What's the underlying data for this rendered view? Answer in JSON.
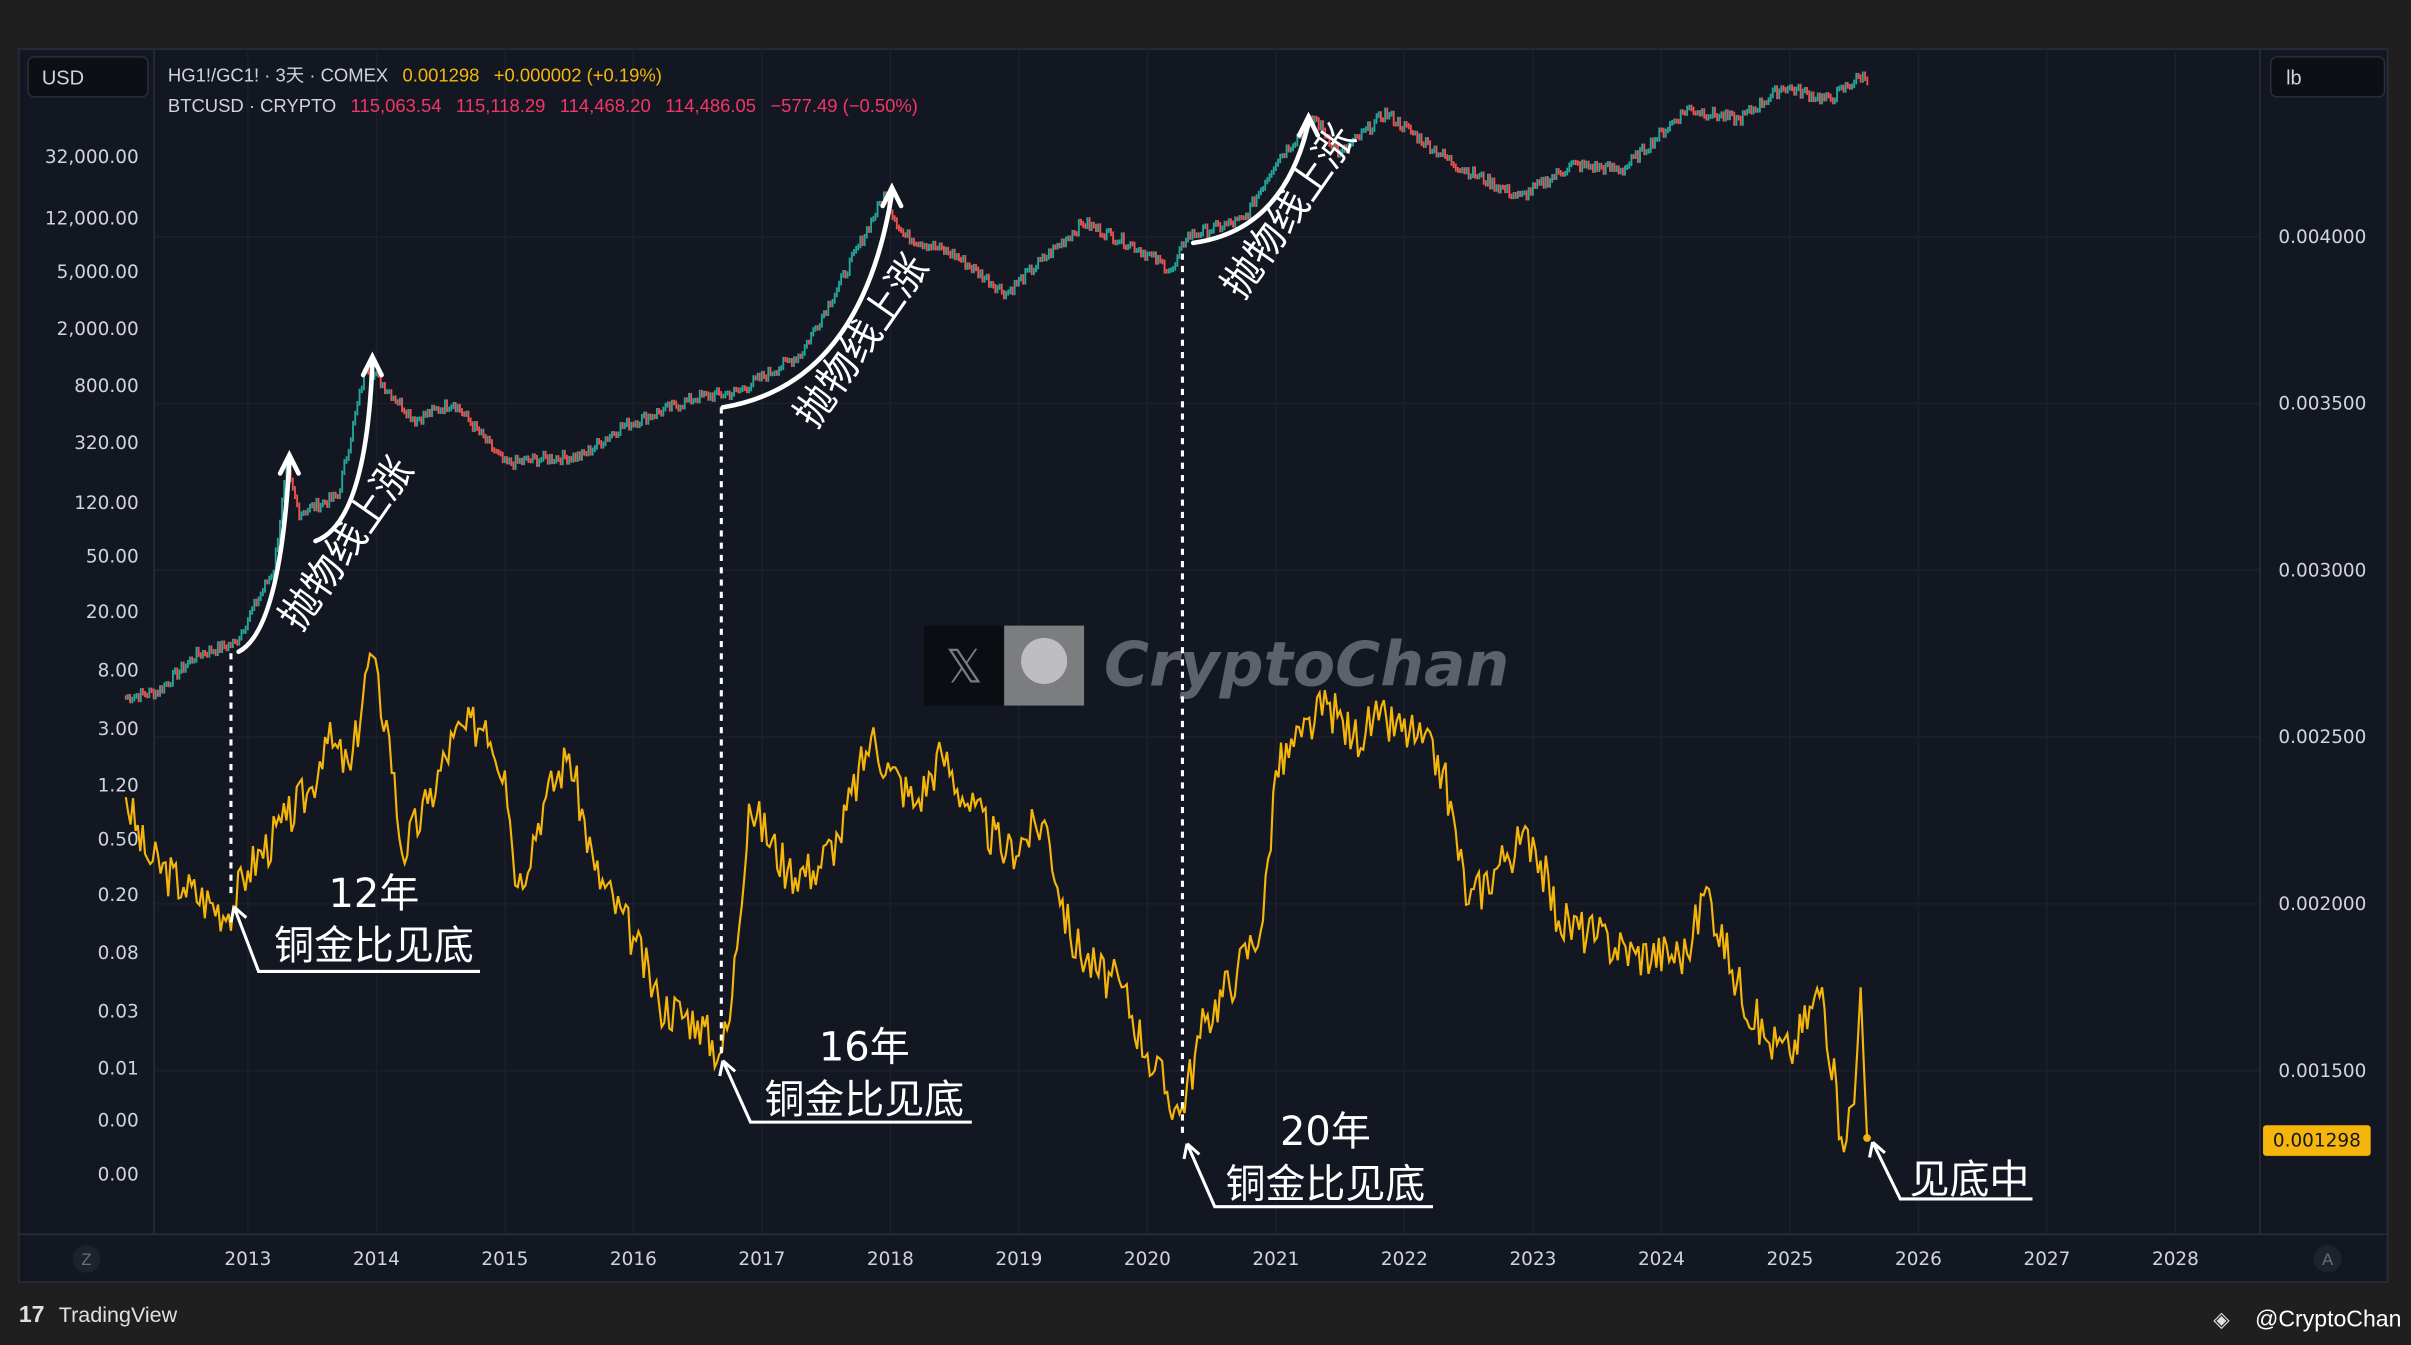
{
  "currency_button": "USD",
  "unit_button": "lb",
  "legend": {
    "ratio": {
      "symbol": "HG1!/GC1! · 3天 · COMEX",
      "value": "0.001298",
      "change": "+0.000002 (+0.19%)",
      "color": "#f5b50a"
    },
    "btc": {
      "symbol": "BTCUSD · CRYPTO",
      "open": "115,063.54",
      "high": "115,118.29",
      "low": "114,468.20",
      "close": "114,486.05",
      "change": "−577.49 (−0.50%)",
      "color": "#f23669"
    }
  },
  "chart_data": {
    "type": "line",
    "xlabel": "",
    "ylabel": "",
    "x_ticks": [
      "2013",
      "2014",
      "2015",
      "2016",
      "2017",
      "2018",
      "2019",
      "2020",
      "2021",
      "2022",
      "2023",
      "2024",
      "2025",
      "2026",
      "2027",
      "2028"
    ],
    "left_axis": {
      "scale": "log",
      "ticks": [
        "32,000.00",
        "12,000.00",
        "5,000.00",
        "2,000.00",
        "800.00",
        "320.00",
        "120.00",
        "50.00",
        "20.00",
        "8.00",
        "3.00",
        "1.20",
        "0.50",
        "0.20",
        "0.08",
        "0.03",
        "0.01",
        "0.00",
        "0.00"
      ]
    },
    "right_axis": {
      "scale": "linear",
      "ticks": [
        "0.004000",
        "0.003500",
        "0.003000",
        "0.002500",
        "0.002000",
        "0.001500"
      ],
      "last_value_label": "0.001298"
    },
    "grid": true,
    "series": [
      {
        "name": "BTCUSD",
        "axis": "left",
        "style": "candles",
        "colors": {
          "up": "#26a69a",
          "down": "#ef5350"
        },
        "x": [
          2012.05,
          2012.3,
          2012.6,
          2012.9,
          2013.2,
          2013.3,
          2013.4,
          2013.7,
          2013.92,
          2014.05,
          2014.3,
          2014.6,
          2015.0,
          2015.3,
          2015.6,
          2015.9,
          2016.5,
          2016.8,
          2017.3,
          2017.6,
          2017.95,
          2018.1,
          2018.5,
          2018.9,
          2019.5,
          2019.9,
          2020.2,
          2020.3,
          2020.75,
          2021.0,
          2021.3,
          2021.5,
          2021.85,
          2022.4,
          2022.9,
          2023.3,
          2023.7,
          2024.2,
          2024.6,
          2024.95,
          2025.3,
          2025.55,
          2025.62
        ],
        "y": [
          5,
          5.5,
          10,
          12,
          40,
          200,
          100,
          130,
          1100,
          800,
          450,
          600,
          220,
          240,
          250,
          400,
          650,
          700,
          1300,
          4000,
          17000,
          9000,
          6500,
          3500,
          11000,
          7500,
          5000,
          8800,
          11500,
          30000,
          60000,
          33000,
          65000,
          28000,
          16500,
          28000,
          26000,
          70000,
          58000,
          100000,
          80000,
          118000,
          115000
        ]
      },
      {
        "name": "HG1!/GC1!",
        "axis": "right",
        "color": "#f5b50a",
        "x": [
          2012.05,
          2012.2,
          2012.5,
          2012.85,
          2013.0,
          2013.3,
          2013.5,
          2013.6,
          2013.8,
          2013.95,
          2014.1,
          2014.2,
          2014.4,
          2014.6,
          2014.85,
          2015.0,
          2015.1,
          2015.3,
          2015.5,
          2015.7,
          2016.0,
          2016.2,
          2016.5,
          2016.67,
          2016.75,
          2016.9,
          2017.2,
          2017.4,
          2017.6,
          2017.85,
          2018.0,
          2018.2,
          2018.4,
          2018.6,
          2018.9,
          2019.2,
          2019.4,
          2019.6,
          2019.8,
          2020.0,
          2020.25,
          2020.45,
          2020.7,
          2020.9,
          2021.0,
          2021.2,
          2021.4,
          2021.6,
          2021.8,
          2022.1,
          2022.3,
          2022.5,
          2022.8,
          2023.0,
          2023.2,
          2023.5,
          2023.8,
          2024.2,
          2024.35,
          2024.55,
          2024.8,
          2025.0,
          2025.25,
          2025.4,
          2025.5,
          2025.55,
          2025.6
        ],
        "y": [
          0.00232,
          0.00215,
          0.00205,
          0.00197,
          0.0021,
          0.00225,
          0.00235,
          0.0025,
          0.0024,
          0.00275,
          0.0025,
          0.00215,
          0.0023,
          0.0025,
          0.00255,
          0.0024,
          0.00205,
          0.0023,
          0.00245,
          0.0021,
          0.0019,
          0.0017,
          0.00165,
          0.00155,
          0.00165,
          0.0023,
          0.0021,
          0.0021,
          0.0022,
          0.0025,
          0.0024,
          0.0023,
          0.00245,
          0.0023,
          0.00215,
          0.00225,
          0.0019,
          0.0018,
          0.00175,
          0.00155,
          0.00137,
          0.00165,
          0.0018,
          0.00195,
          0.0024,
          0.0025,
          0.0026,
          0.0025,
          0.00255,
          0.0025,
          0.0024,
          0.002,
          0.00215,
          0.0022,
          0.00195,
          0.0019,
          0.00185,
          0.00185,
          0.00205,
          0.0018,
          0.0016,
          0.00155,
          0.00175,
          0.0013,
          0.0014,
          0.00175,
          0.001298
        ]
      }
    ],
    "annotations": {
      "parabolic": "抛物线上涨",
      "bottoms": [
        {
          "year": "12年",
          "text": "铜金比见底"
        },
        {
          "year": "16年",
          "text": "铜金比见底"
        },
        {
          "year": "20年",
          "text": "铜金比见底"
        }
      ],
      "current": "见底中"
    }
  },
  "watermark": {
    "text": "CryptoChan"
  },
  "footer": {
    "brand": "TradingView",
    "handle": "@CryptoChan"
  },
  "scale_buttons": {
    "left": "Z",
    "right": "A"
  }
}
